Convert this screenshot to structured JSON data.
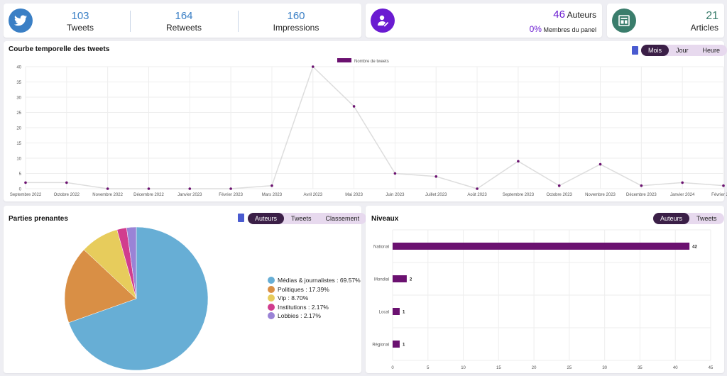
{
  "stats": {
    "tweets": {
      "value": "103",
      "label": "Tweets"
    },
    "retweets": {
      "value": "164",
      "label": "Retweets"
    },
    "impressions": {
      "value": "160",
      "label": "Impressions"
    }
  },
  "authors": {
    "value": "46",
    "label": "Auteurs",
    "panel_value": "0%",
    "panel_label": "Membres du panel"
  },
  "articles": {
    "value": "21",
    "label": "Articles"
  },
  "colors": {
    "twitter": "#3a7fc5",
    "authors": "#6a1bd1",
    "articles": "#3a7d6c",
    "series": "#6b1170"
  },
  "timeline": {
    "title": "Courbe temporelle des tweets",
    "tabs": [
      "Mois",
      "Jour",
      "Heure"
    ],
    "active": "Mois"
  },
  "stakeholders": {
    "title": "Parties prenantes",
    "tabs": [
      "Auteurs",
      "Tweets",
      "Classement"
    ],
    "active": "Auteurs"
  },
  "levels": {
    "title": "Niveaux",
    "tabs": [
      "Auteurs",
      "Tweets"
    ],
    "active": "Auteurs"
  },
  "chart_data": [
    {
      "type": "line",
      "title": "Courbe temporelle des tweets",
      "legend": "Nombre de tweets",
      "ylim": [
        0,
        40
      ],
      "yticks": [
        0,
        5,
        10,
        15,
        20,
        25,
        30,
        35,
        40
      ],
      "categories": [
        "Septembre 2022",
        "Octobre 2022",
        "Novembre 2022",
        "Décembre 2022",
        "Janvier 2023",
        "Février 2023",
        "Mars 2023",
        "Avril 2023",
        "Mai 2023",
        "Juin 2023",
        "Juillet 2023",
        "Août 2023",
        "Septembre 2023",
        "Octobre 2023",
        "Novembre 2023",
        "Décembre 2023",
        "Janvier 2024",
        "Février 2024"
      ],
      "values": [
        2,
        2,
        0,
        0,
        0,
        0,
        1,
        40,
        27,
        5,
        4,
        0,
        9,
        1,
        8,
        1,
        2,
        1
      ]
    },
    {
      "type": "pie",
      "title": "Parties prenantes",
      "slices": [
        {
          "label": "Médias & journalistes : 69.57%",
          "value": 69.57,
          "color": "#67aed5"
        },
        {
          "label": "Politiques : 17.39%",
          "value": 17.39,
          "color": "#d98f45"
        },
        {
          "label": "Vip : 8.70%",
          "value": 8.7,
          "color": "#e7cc5c"
        },
        {
          "label": "Institutions : 2.17%",
          "value": 2.17,
          "color": "#d13d8e"
        },
        {
          "label": "Lobbies : 2.17%",
          "value": 2.17,
          "color": "#9a83d6"
        }
      ]
    },
    {
      "type": "bar",
      "orientation": "horizontal",
      "title": "Niveaux",
      "categories": [
        "National",
        "Mondial",
        "Local",
        "Régional"
      ],
      "values": [
        42,
        2,
        1,
        1
      ],
      "xlim": [
        0,
        45
      ],
      "xticks": [
        0,
        5,
        10,
        15,
        20,
        25,
        30,
        35,
        40,
        45
      ]
    }
  ]
}
